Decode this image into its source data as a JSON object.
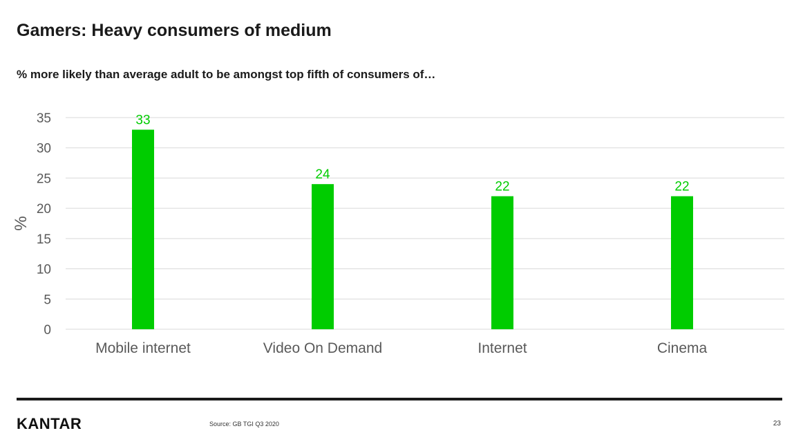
{
  "slide": {
    "title": "Gamers: Heavy consumers of medium",
    "subtitle": "% more likely than average adult to be amongst top fifth of consumers of…"
  },
  "chart_data": {
    "type": "bar",
    "categories": [
      "Mobile internet",
      "Video On Demand",
      "Internet",
      "Cinema"
    ],
    "values": [
      33,
      24,
      22,
      22
    ],
    "ylabel": "%",
    "ylim": [
      0,
      35
    ],
    "yticks": [
      0,
      5,
      10,
      15,
      20,
      25,
      30,
      35
    ],
    "grid": true,
    "data_labels": true,
    "colors": {
      "bar": "#00cc00",
      "label": "#00cc00",
      "grid": "#d9d9d9",
      "tick_text": "#595959"
    }
  },
  "footer": {
    "logo": "KANTAR",
    "source": "Source: GB TGI Q3 2020",
    "page_number": "23"
  }
}
